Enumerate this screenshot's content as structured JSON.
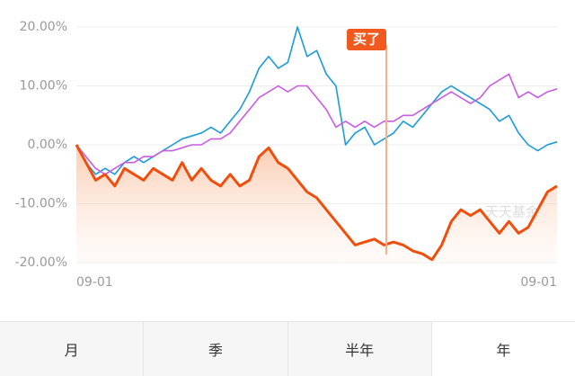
{
  "chart_data": {
    "type": "line",
    "categories": [
      "09-01",
      null,
      null,
      null,
      null,
      null,
      null,
      null,
      null,
      null,
      null,
      null,
      null,
      null,
      null,
      null,
      null,
      null,
      null,
      null,
      null,
      null,
      null,
      null,
      null,
      null,
      null,
      null,
      null,
      null,
      null,
      null,
      null,
      null,
      null,
      null,
      null,
      null,
      null,
      null,
      null,
      null,
      null,
      null,
      null,
      null,
      null,
      null,
      null,
      null,
      "09-01"
    ],
    "series": [
      {
        "color": "#1a9bd7",
        "values": [
          0,
          -3,
          -5,
          -4,
          -5,
          -3,
          -2,
          -3,
          -2,
          -1,
          0,
          1,
          1.5,
          2,
          3,
          2,
          4,
          6,
          9,
          13,
          15,
          13,
          14,
          20,
          15,
          16,
          12,
          10,
          0,
          2,
          3,
          0,
          1,
          2,
          4,
          3,
          5,
          7,
          9,
          10,
          9,
          8,
          7,
          6,
          4,
          5,
          2,
          0,
          -1,
          0,
          0.5
        ]
      },
      {
        "color": "#c95ce0",
        "values": [
          0,
          -2,
          -4,
          -5,
          -4,
          -3,
          -3,
          -2,
          -2,
          -1,
          -1,
          -0.5,
          0,
          0,
          1,
          1,
          2,
          4,
          6,
          8,
          9,
          10,
          9,
          10,
          10,
          8,
          6,
          3,
          4,
          3,
          4,
          3,
          4,
          4,
          5,
          5,
          6,
          7,
          8,
          9,
          8,
          7,
          8,
          10,
          11,
          12,
          8,
          9,
          8,
          9,
          9.5
        ]
      },
      {
        "color": "#f04e0c",
        "values": [
          0,
          -3,
          -6,
          -5,
          -7,
          -4,
          -5,
          -6,
          -4,
          -5,
          -6,
          -3,
          -6,
          -4,
          -6,
          -7,
          -5,
          -7,
          -6,
          -2,
          -0.5,
          -3,
          -4,
          -6,
          -8,
          -9,
          -11,
          -13,
          -15,
          -17,
          -16.5,
          -16,
          -17,
          -16.5,
          -17,
          -18,
          -18.5,
          -19.5,
          -17,
          -13,
          -11,
          -12,
          -11,
          -13,
          -15,
          -13,
          -15,
          -14,
          -11,
          -8,
          -7
        ]
      }
    ],
    "ylim": [
      -20,
      20
    ],
    "yticks": [
      {
        "value": -20,
        "label": "-20.00%"
      },
      {
        "value": -10,
        "label": "-10.00%"
      },
      {
        "value": 0,
        "label": "0.00%"
      },
      {
        "value": 10,
        "label": "10.00%"
      },
      {
        "value": 20,
        "label": "20.00%"
      }
    ],
    "grid": true,
    "annotation": "买了",
    "watermark": "天天基金"
  },
  "tabs": [
    "月",
    "季",
    "半年",
    "年"
  ]
}
